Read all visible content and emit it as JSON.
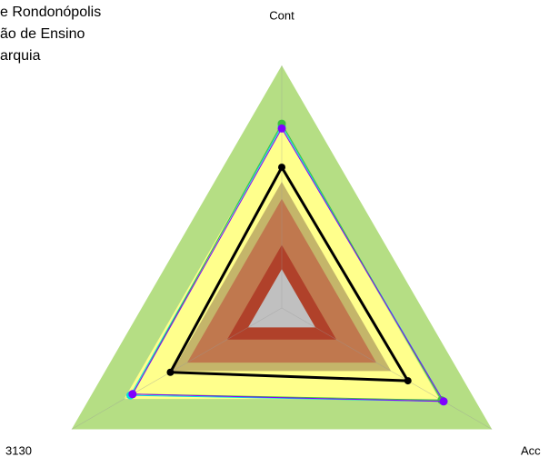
{
  "chart_data": {
    "type": "radar",
    "title_lines": [
      "e Rondonópolis",
      "ão de Ensino",
      "arquia"
    ],
    "categories": [
      "Cont",
      "Acc",
      "3130"
    ],
    "rlim": [
      0,
      100
    ],
    "series": [
      {
        "color": "#b5de84",
        "fill": true,
        "values": [
          100,
          100,
          100
        ]
      },
      {
        "color": "#ffff8c",
        "fill": true,
        "values": [
          75,
          75,
          75
        ]
      },
      {
        "color": "#c4b56a",
        "fill": true,
        "values": [
          52,
          52,
          52
        ]
      },
      {
        "color": "#c0784e",
        "fill": true,
        "values": [
          45,
          45,
          45
        ]
      },
      {
        "color": "#b0412a",
        "fill": true,
        "values": [
          26,
          26,
          26
        ]
      },
      {
        "color": "#c0c0c0",
        "fill": true,
        "values": [
          16,
          16,
          16
        ]
      },
      {
        "color": "#00e0e0",
        "fill": false,
        "values": [
          75,
          77,
          72
        ]
      },
      {
        "color": "#40c040",
        "fill": false,
        "values": [
          76,
          76,
          71
        ]
      },
      {
        "color": "#8000ff",
        "fill": false,
        "values": [
          74,
          77,
          71
        ]
      },
      {
        "color": "#000000",
        "fill": false,
        "values": [
          58,
          60,
          53
        ]
      }
    ]
  }
}
